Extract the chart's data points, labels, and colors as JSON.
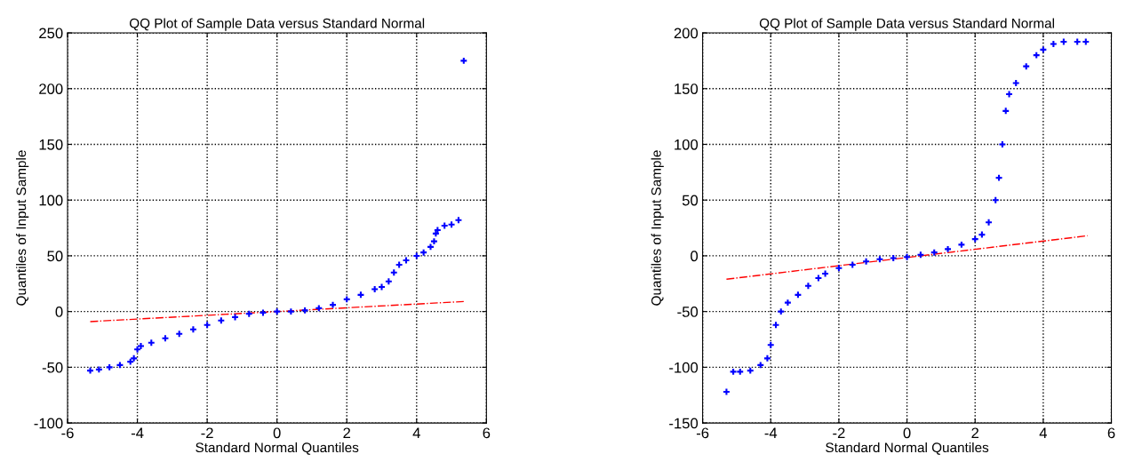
{
  "chart_data": [
    {
      "type": "scatter",
      "title": "QQ Plot of Sample Data versus Standard Normal",
      "xlabel": "Standard Normal Quantiles",
      "ylabel": "Quantiles of Input Sample",
      "xlim": [
        -6,
        6
      ],
      "ylim": [
        -100,
        250
      ],
      "xticks": [
        -6,
        -4,
        -2,
        0,
        2,
        4,
        6
      ],
      "yticks": [
        -100,
        -50,
        0,
        50,
        100,
        150,
        200,
        250
      ],
      "grid": true,
      "series": [
        {
          "color": "#0000ff",
          "marker": "cross",
          "x": [
            -5.35,
            -5.1,
            -4.8,
            -4.5,
            -4.2,
            -4.1,
            -4.0,
            -3.9,
            -3.6,
            -3.2,
            -2.8,
            -2.4,
            -2.0,
            -1.6,
            -1.2,
            -0.8,
            -0.4,
            0,
            0.4,
            0.8,
            1.2,
            1.6,
            2.0,
            2.4,
            2.8,
            3.0,
            3.2,
            3.35,
            3.5,
            3.7,
            4.0,
            4.2,
            4.4,
            4.5,
            4.55,
            4.6,
            4.8,
            5.0,
            5.2,
            5.35
          ],
          "values": [
            -53,
            -52,
            -50,
            -48,
            -45,
            -42,
            -34,
            -31,
            -28,
            -24,
            -20,
            -16,
            -12,
            -8,
            -5,
            -2,
            -1,
            0,
            0,
            1,
            3,
            6,
            11,
            15,
            20,
            22,
            27,
            35,
            42,
            46,
            50,
            53,
            58,
            63,
            70,
            73,
            77,
            78,
            82,
            225
          ]
        },
        {
          "type": "line",
          "color": "#ff0000",
          "line_style": "dashed",
          "x": [
            -5.35,
            5.35
          ],
          "values": [
            -9,
            9
          ]
        }
      ]
    },
    {
      "type": "scatter",
      "title": "QQ Plot of Sample Data versus Standard Normal",
      "xlabel": "Standard Normal Quantiles",
      "ylabel": "Quantiles of Input Sample",
      "xlim": [
        -6,
        6
      ],
      "ylim": [
        -150,
        200
      ],
      "xticks": [
        -6,
        -4,
        -2,
        0,
        2,
        4,
        6
      ],
      "yticks": [
        -150,
        -100,
        -50,
        0,
        50,
        100,
        150,
        200
      ],
      "grid": true,
      "series": [
        {
          "color": "#0000ff",
          "marker": "cross",
          "x": [
            -5.3,
            -5.1,
            -4.9,
            -4.6,
            -4.3,
            -4.1,
            -4.0,
            -3.85,
            -3.7,
            -3.5,
            -3.2,
            -2.9,
            -2.6,
            -2.4,
            -2.0,
            -1.6,
            -1.2,
            -0.8,
            -0.4,
            0,
            0.4,
            0.8,
            1.2,
            1.6,
            2.0,
            2.2,
            2.4,
            2.6,
            2.7,
            2.8,
            2.9,
            3.0,
            3.2,
            3.5,
            3.8,
            4.0,
            4.3,
            4.6,
            5.0,
            5.25
          ],
          "values": [
            -122,
            -104,
            -104,
            -103,
            -98,
            -92,
            -80,
            -62,
            -50,
            -42,
            -35,
            -27,
            -20,
            -16,
            -11,
            -8,
            -5,
            -3,
            -2,
            -1,
            1,
            3,
            6,
            10,
            15,
            19,
            30,
            50,
            70,
            100,
            130,
            145,
            155,
            170,
            180,
            185,
            190,
            192,
            192,
            192
          ]
        },
        {
          "type": "line",
          "color": "#ff0000",
          "line_style": "dashed",
          "x": [
            -5.3,
            5.3
          ],
          "values": [
            -21,
            18
          ]
        }
      ]
    }
  ]
}
